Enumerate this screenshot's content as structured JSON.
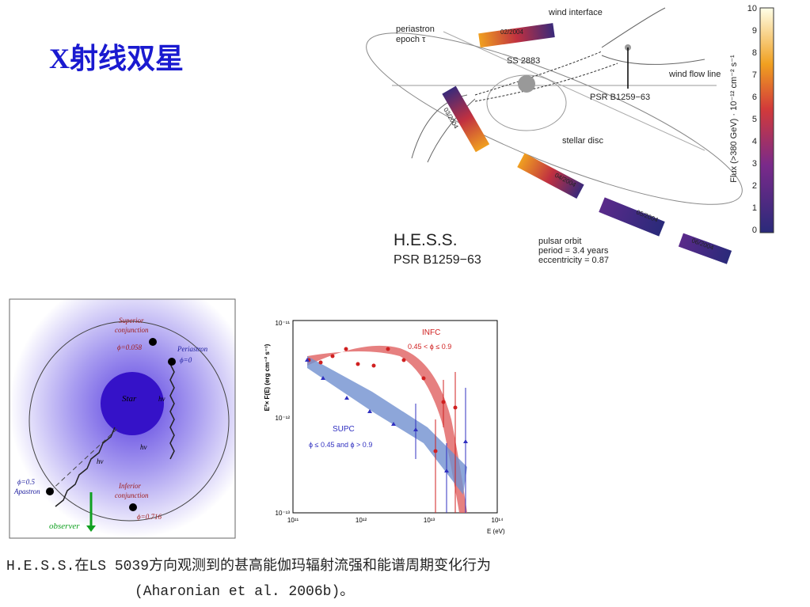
{
  "title": "X射线双星",
  "orbit_figure": {
    "labels": [
      "wind interface",
      "periastron",
      "epoch τ",
      "02/2004",
      "SS 2883",
      "wind flow line",
      "PSR B1259−63",
      "03/2004",
      "stellar disc",
      "04/2004",
      "05/2004",
      "06/2004",
      "pulsar orbit",
      "period = 3.4 years",
      "eccentricity = 0.87"
    ],
    "name": "H.E.S.S.",
    "source": "PSR B1259−63",
    "colorbar": {
      "ticks": [
        "10",
        "9",
        "8",
        "7",
        "6",
        "5",
        "4",
        "3",
        "2",
        "1",
        "0"
      ],
      "label": "Flux (>380 GeV) · 10⁻¹² cm⁻² s⁻¹"
    }
  },
  "geometry_figure": {
    "labels": [
      "Superior",
      "conjunction",
      "ϕ=0.058",
      "Periastron",
      "ϕ=0",
      "Star",
      "ϕ=0.5",
      "Apastron",
      "Inferior",
      "conjunction",
      "ϕ=0.716",
      "observer",
      "hν",
      "hν",
      "hν"
    ]
  },
  "spectrum_figure": {
    "y_label": "E²× F(E) (erg cm⁻² s⁻¹)",
    "x_label": "E (eV)",
    "y_ticks": [
      "10⁻¹¹",
      "10⁻¹²",
      "10⁻¹³"
    ],
    "x_ticks": [
      "10¹¹",
      "10¹²",
      "10¹³",
      "10¹⁴"
    ],
    "infc": "INFC",
    "infc_range": "0.45 < ϕ ≤ 0.9",
    "supc": "SUPC",
    "supc_range": "ϕ ≤ 0.45 and ϕ > 0.9"
  },
  "caption": [
    "H.E.S.S.在LS 5039方向观测到的甚高能伽玛辐射流强和能谱周期变化行为",
    "(Aharonian et al. 2006b)。"
  ]
}
